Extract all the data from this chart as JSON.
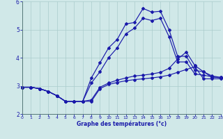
{
  "xlabel": "Graphe des températures (°c)",
  "bg_color": "#d0e8e8",
  "line_color": "#1a1aaa",
  "grid_color": "#aacccc",
  "xlim": [
    0,
    23
  ],
  "ylim": [
    2,
    6
  ],
  "yticks": [
    2,
    3,
    4,
    5,
    6
  ],
  "xticks": [
    0,
    1,
    2,
    3,
    4,
    5,
    6,
    7,
    8,
    9,
    10,
    11,
    12,
    13,
    14,
    15,
    16,
    17,
    18,
    19,
    20,
    21,
    22,
    23
  ],
  "line1_x": [
    0,
    1,
    2,
    3,
    4,
    5,
    6,
    7,
    8,
    9,
    10,
    11,
    12,
    13,
    14,
    15,
    16,
    17,
    18,
    19,
    20,
    21,
    22,
    23
  ],
  "line1_y": [
    2.95,
    2.95,
    2.9,
    2.8,
    2.65,
    2.45,
    2.45,
    2.45,
    2.45,
    2.9,
    3.05,
    3.12,
    3.18,
    3.22,
    3.25,
    3.28,
    3.32,
    3.38,
    3.48,
    3.58,
    3.68,
    3.25,
    3.25,
    3.25
  ],
  "line2_x": [
    0,
    1,
    2,
    3,
    4,
    5,
    6,
    7,
    8,
    9,
    10,
    11,
    12,
    13,
    14,
    15,
    16,
    17,
    18,
    19,
    20,
    21,
    22,
    23
  ],
  "line2_y": [
    2.95,
    2.95,
    2.9,
    2.8,
    2.65,
    2.45,
    2.45,
    2.45,
    2.5,
    2.95,
    3.1,
    3.2,
    3.28,
    3.35,
    3.38,
    3.42,
    3.48,
    3.62,
    3.95,
    4.2,
    3.72,
    3.5,
    3.3,
    3.3
  ],
  "line3_x": [
    0,
    1,
    2,
    3,
    4,
    5,
    6,
    7,
    8,
    9,
    10,
    11,
    12,
    13,
    14,
    15,
    16,
    17,
    18,
    19,
    20,
    21,
    22,
    23
  ],
  "line3_y": [
    2.95,
    2.95,
    2.9,
    2.8,
    2.65,
    2.45,
    2.45,
    2.45,
    3.28,
    3.82,
    4.35,
    4.65,
    5.2,
    5.25,
    5.75,
    5.62,
    5.65,
    5.0,
    4.05,
    4.05,
    3.55,
    3.5,
    3.35,
    3.3
  ],
  "line4_x": [
    0,
    1,
    2,
    3,
    4,
    5,
    6,
    7,
    8,
    9,
    10,
    11,
    12,
    13,
    14,
    15,
    16,
    17,
    18,
    19,
    20,
    21,
    22,
    23
  ],
  "line4_y": [
    2.95,
    2.95,
    2.9,
    2.8,
    2.65,
    2.45,
    2.45,
    2.45,
    3.1,
    3.5,
    4.0,
    4.35,
    4.85,
    5.05,
    5.4,
    5.32,
    5.4,
    4.75,
    3.85,
    3.85,
    3.42,
    3.38,
    3.32,
    3.28
  ]
}
